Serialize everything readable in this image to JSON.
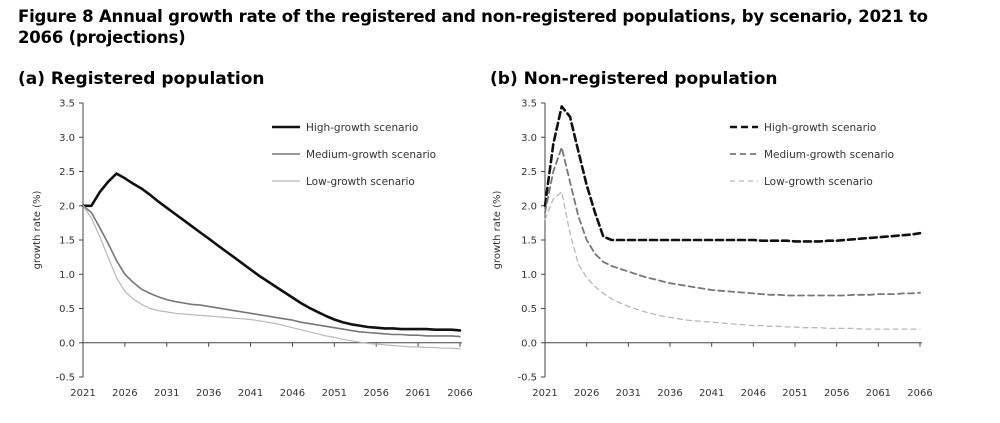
{
  "figure": {
    "title": "Figure 8   Annual growth rate of the registered and non-registered populations, by scenario, 2021 to 2066 (projections)"
  },
  "colors": {
    "high": "#111111",
    "medium": "#777777",
    "low": "#b8b8b8",
    "axis": "#444444"
  },
  "chart_data": [
    {
      "type": "line",
      "title": "(a) Registered population",
      "xlabel": "",
      "ylabel": "growth rate (%)",
      "xlim": [
        2021,
        2066
      ],
      "ylim": [
        -0.5,
        3.5
      ],
      "xticks": [
        2021,
        2026,
        2031,
        2036,
        2041,
        2046,
        2051,
        2056,
        2061,
        2066
      ],
      "yticks": [
        -0.5,
        0.0,
        0.5,
        1.0,
        1.5,
        2.0,
        2.5,
        3.0,
        3.5
      ],
      "x": [
        2021,
        2022,
        2023,
        2024,
        2025,
        2026,
        2027,
        2028,
        2029,
        2030,
        2031,
        2032,
        2033,
        2034,
        2035,
        2036,
        2037,
        2038,
        2039,
        2040,
        2041,
        2042,
        2043,
        2044,
        2045,
        2046,
        2047,
        2048,
        2049,
        2050,
        2051,
        2052,
        2053,
        2054,
        2055,
        2056,
        2057,
        2058,
        2059,
        2060,
        2061,
        2062,
        2063,
        2064,
        2065,
        2066
      ],
      "series": [
        {
          "name": "High-growth scenario",
          "style": "solid-thick",
          "values": [
            2.0,
            2.0,
            2.2,
            2.35,
            2.47,
            2.4,
            2.32,
            2.25,
            2.16,
            2.06,
            1.97,
            1.88,
            1.79,
            1.7,
            1.61,
            1.52,
            1.43,
            1.34,
            1.25,
            1.16,
            1.07,
            0.98,
            0.9,
            0.82,
            0.74,
            0.66,
            0.58,
            0.51,
            0.45,
            0.39,
            0.34,
            0.3,
            0.27,
            0.25,
            0.23,
            0.22,
            0.21,
            0.21,
            0.2,
            0.2,
            0.2,
            0.2,
            0.19,
            0.19,
            0.19,
            0.18
          ]
        },
        {
          "name": "Medium-growth scenario",
          "style": "solid-medium",
          "values": [
            2.0,
            1.9,
            1.68,
            1.45,
            1.2,
            1.0,
            0.88,
            0.78,
            0.72,
            0.67,
            0.63,
            0.6,
            0.58,
            0.56,
            0.55,
            0.53,
            0.51,
            0.49,
            0.47,
            0.45,
            0.43,
            0.41,
            0.39,
            0.37,
            0.35,
            0.33,
            0.3,
            0.28,
            0.26,
            0.24,
            0.22,
            0.2,
            0.18,
            0.16,
            0.15,
            0.14,
            0.13,
            0.12,
            0.12,
            0.11,
            0.11,
            0.1,
            0.1,
            0.1,
            0.1,
            0.09
          ]
        },
        {
          "name": "Low-growth scenario",
          "style": "solid-light",
          "values": [
            2.0,
            1.82,
            1.55,
            1.25,
            0.95,
            0.75,
            0.64,
            0.56,
            0.5,
            0.47,
            0.45,
            0.43,
            0.42,
            0.41,
            0.4,
            0.39,
            0.38,
            0.37,
            0.36,
            0.35,
            0.34,
            0.32,
            0.3,
            0.28,
            0.25,
            0.22,
            0.19,
            0.16,
            0.13,
            0.1,
            0.08,
            0.05,
            0.03,
            0.01,
            -0.01,
            -0.02,
            -0.03,
            -0.04,
            -0.05,
            -0.06,
            -0.06,
            -0.07,
            -0.07,
            -0.08,
            -0.08,
            -0.09
          ]
        }
      ]
    },
    {
      "type": "line",
      "title": "(b) Non-registered population",
      "xlabel": "",
      "ylabel": "growth rate (%)",
      "xlim": [
        2021,
        2066
      ],
      "ylim": [
        -0.5,
        3.5
      ],
      "xticks": [
        2021,
        2026,
        2031,
        2036,
        2041,
        2046,
        2051,
        2056,
        2061,
        2066
      ],
      "yticks": [
        -0.5,
        0.0,
        0.5,
        1.0,
        1.5,
        2.0,
        2.5,
        3.0,
        3.5
      ],
      "x": [
        2021,
        2022,
        2023,
        2024,
        2025,
        2026,
        2027,
        2028,
        2029,
        2030,
        2031,
        2032,
        2033,
        2034,
        2035,
        2036,
        2037,
        2038,
        2039,
        2040,
        2041,
        2042,
        2043,
        2044,
        2045,
        2046,
        2047,
        2048,
        2049,
        2050,
        2051,
        2052,
        2053,
        2054,
        2055,
        2056,
        2057,
        2058,
        2059,
        2060,
        2061,
        2062,
        2063,
        2064,
        2065,
        2066
      ],
      "series": [
        {
          "name": "High-growth scenario",
          "style": "dash-thick",
          "values": [
            2.0,
            2.9,
            3.45,
            3.3,
            2.8,
            2.3,
            1.9,
            1.55,
            1.5,
            1.5,
            1.5,
            1.5,
            1.5,
            1.5,
            1.5,
            1.5,
            1.5,
            1.5,
            1.5,
            1.5,
            1.5,
            1.5,
            1.5,
            1.5,
            1.5,
            1.5,
            1.49,
            1.49,
            1.49,
            1.49,
            1.48,
            1.48,
            1.48,
            1.48,
            1.49,
            1.49,
            1.5,
            1.51,
            1.52,
            1.53,
            1.54,
            1.55,
            1.56,
            1.57,
            1.58,
            1.6
          ]
        },
        {
          "name": "Medium-growth scenario",
          "style": "dash-medium",
          "values": [
            1.9,
            2.5,
            2.85,
            2.35,
            1.85,
            1.5,
            1.3,
            1.18,
            1.12,
            1.08,
            1.04,
            1.0,
            0.96,
            0.93,
            0.9,
            0.87,
            0.85,
            0.83,
            0.81,
            0.79,
            0.77,
            0.76,
            0.75,
            0.74,
            0.73,
            0.72,
            0.71,
            0.7,
            0.7,
            0.69,
            0.69,
            0.69,
            0.69,
            0.69,
            0.69,
            0.69,
            0.69,
            0.7,
            0.7,
            0.7,
            0.71,
            0.71,
            0.71,
            0.72,
            0.72,
            0.73
          ]
        },
        {
          "name": "Low-growth scenario",
          "style": "dash-light",
          "values": [
            1.8,
            2.1,
            2.2,
            1.6,
            1.15,
            0.95,
            0.82,
            0.72,
            0.64,
            0.58,
            0.53,
            0.49,
            0.45,
            0.42,
            0.39,
            0.37,
            0.35,
            0.33,
            0.32,
            0.31,
            0.3,
            0.29,
            0.28,
            0.27,
            0.26,
            0.25,
            0.25,
            0.24,
            0.24,
            0.23,
            0.23,
            0.22,
            0.22,
            0.22,
            0.21,
            0.21,
            0.21,
            0.21,
            0.2,
            0.2,
            0.2,
            0.2,
            0.2,
            0.2,
            0.2,
            0.2
          ]
        }
      ]
    }
  ]
}
